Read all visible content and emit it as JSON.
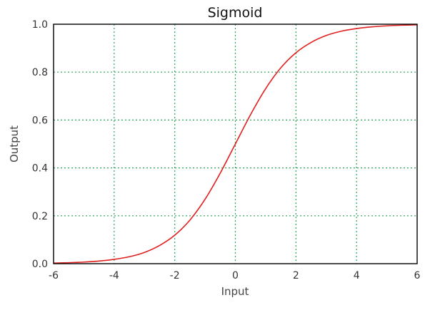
{
  "chart_data": {
    "type": "line",
    "title": "Sigmoid",
    "xlabel": "Input",
    "ylabel": "Output",
    "xlim": [
      -6,
      6
    ],
    "ylim": [
      0,
      1
    ],
    "x_ticks": [
      -6,
      -4,
      -2,
      0,
      2,
      4,
      6
    ],
    "y_ticks": [
      0.0,
      0.2,
      0.4,
      0.6,
      0.8,
      1.0
    ],
    "x_tick_labels": [
      "-6",
      "-4",
      "-2",
      "0",
      "2",
      "4",
      "6"
    ],
    "y_tick_labels": [
      "0.0",
      "0.2",
      "0.4",
      "0.6",
      "0.8",
      "1.0"
    ],
    "grid": true,
    "grid_style": "dotted",
    "colors": {
      "line": "#e02020",
      "grid": "#2aa55a",
      "frame": "#000000"
    },
    "series": [
      {
        "x": [
          -6,
          -5.5,
          -5,
          -4.5,
          -4,
          -3.5,
          -3,
          -2.5,
          -2,
          -1.5,
          -1,
          -0.5,
          0,
          0.5,
          1,
          1.5,
          2,
          2.5,
          3,
          3.5,
          4,
          4.5,
          5,
          5.5,
          6
        ],
        "values": [
          0.0025,
          0.0041,
          0.0067,
          0.011,
          0.018,
          0.029,
          0.047,
          0.076,
          0.119,
          0.182,
          0.269,
          0.378,
          0.5,
          0.622,
          0.731,
          0.818,
          0.881,
          0.924,
          0.953,
          0.971,
          0.982,
          0.989,
          0.9933,
          0.9959,
          0.9975
        ]
      }
    ]
  }
}
